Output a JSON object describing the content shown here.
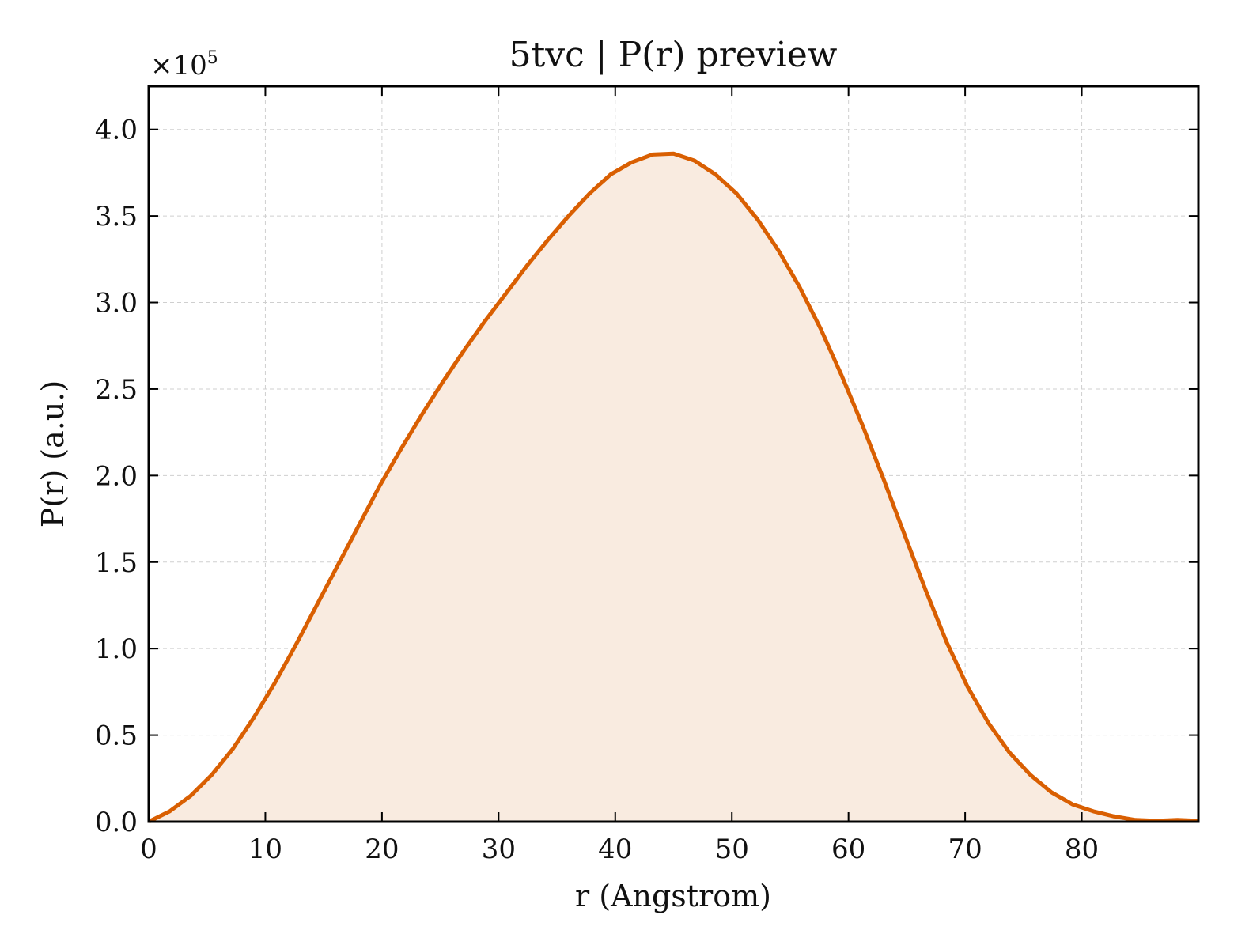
{
  "chart_data": {
    "type": "area",
    "title": "5tvc | P(r) preview",
    "xlabel": "r (Angstrom)",
    "ylabel": "P(r) (a.u.)",
    "y_multiplier_base": "×10",
    "y_multiplier_exponent": "5",
    "xlim": [
      0,
      90
    ],
    "ylim": [
      0,
      4.25
    ],
    "x_ticks": [
      0,
      10,
      20,
      30,
      40,
      50,
      60,
      70,
      80
    ],
    "x_tick_labels": [
      "0",
      "10",
      "20",
      "30",
      "40",
      "50",
      "60",
      "70",
      "80"
    ],
    "y_ticks": [
      0,
      0.5,
      1.0,
      1.5,
      2.0,
      2.5,
      3.0,
      3.5,
      4.0
    ],
    "y_tick_labels": [
      "0.0",
      "0.5",
      "1.0",
      "1.5",
      "2.0",
      "2.5",
      "3.0",
      "3.5",
      "4.0"
    ],
    "grid": true,
    "line_color": "#d95f02",
    "fill_color": "#f9ebe0",
    "series": [
      {
        "x": [
          0,
          1.8,
          3.6,
          5.4,
          7.2,
          9.0,
          10.8,
          12.6,
          14.4,
          16.2,
          18.0,
          19.8,
          21.6,
          23.4,
          25.2,
          27.0,
          28.8,
          30.6,
          32.4,
          34.2,
          36.0,
          37.8,
          39.6,
          41.4,
          43.2,
          45.0,
          46.8,
          48.6,
          50.4,
          52.2,
          54.0,
          55.8,
          57.6,
          59.4,
          61.2,
          63.0,
          64.8,
          66.6,
          68.4,
          70.2,
          72.0,
          73.8,
          75.6,
          77.4,
          79.2,
          81.0,
          82.8,
          84.6,
          86.4,
          88.2,
          90.0
        ],
        "values": [
          0.0,
          0.06,
          0.15,
          0.27,
          0.42,
          0.6,
          0.8,
          1.02,
          1.25,
          1.48,
          1.71,
          1.94,
          2.15,
          2.35,
          2.54,
          2.72,
          2.89,
          3.05,
          3.21,
          3.36,
          3.5,
          3.63,
          3.74,
          3.81,
          3.855,
          3.86,
          3.82,
          3.74,
          3.63,
          3.48,
          3.3,
          3.09,
          2.85,
          2.58,
          2.29,
          1.98,
          1.66,
          1.34,
          1.04,
          0.78,
          0.57,
          0.4,
          0.27,
          0.17,
          0.1,
          0.06,
          0.03,
          0.01,
          0.005,
          0.01,
          0.005
        ]
      }
    ]
  }
}
